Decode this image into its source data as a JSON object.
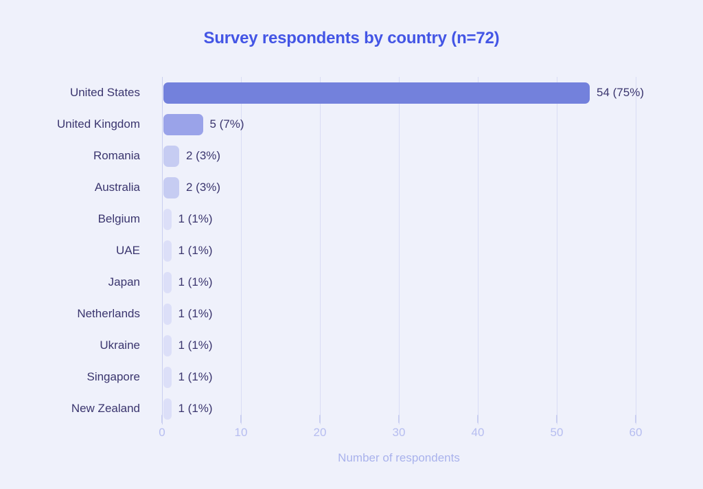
{
  "chart_data": {
    "type": "bar",
    "orientation": "horizontal",
    "title": "Survey respondents by country (n=72)",
    "xlabel": "Number of respondents",
    "categories": [
      "United States",
      "United Kingdom",
      "Romania",
      "Australia",
      "Belgium",
      "UAE",
      "Japan",
      "Netherlands",
      "Ukraine",
      "Singapore",
      "New Zealand"
    ],
    "values": [
      54,
      5,
      2,
      2,
      1,
      1,
      1,
      1,
      1,
      1,
      1
    ],
    "value_labels": [
      "54 (75%)",
      "5 (7%)",
      "2 (3%)",
      "2 (3%)",
      "1 (1%)",
      "1 (1%)",
      "1 (1%)",
      "1 (1%)",
      "1 (1%)",
      "1 (1%)",
      "1 (1%)"
    ],
    "xlim": [
      0,
      60
    ],
    "xticks": [
      0,
      10,
      20,
      30,
      40,
      50,
      60
    ],
    "grid": true,
    "legend_position": "none"
  },
  "style": {
    "background": "#eff1fb",
    "title_color": "#4355e5",
    "label_color": "#3a356e",
    "value_color": "#3a356e",
    "tick_color": "#b6bdf0",
    "axis_label_color": "#a9b2ec",
    "grid_color": "#d9dcf5",
    "axis_line_color": "#c9cef1",
    "bar_colors": [
      "#7381dc",
      "#9aa3e9",
      "#c6ccf2",
      "#c6ccf2",
      "#dcdff8",
      "#dcdff8",
      "#dcdff8",
      "#dcdff8",
      "#dcdff8",
      "#dcdff8",
      "#dcdff8"
    ]
  }
}
